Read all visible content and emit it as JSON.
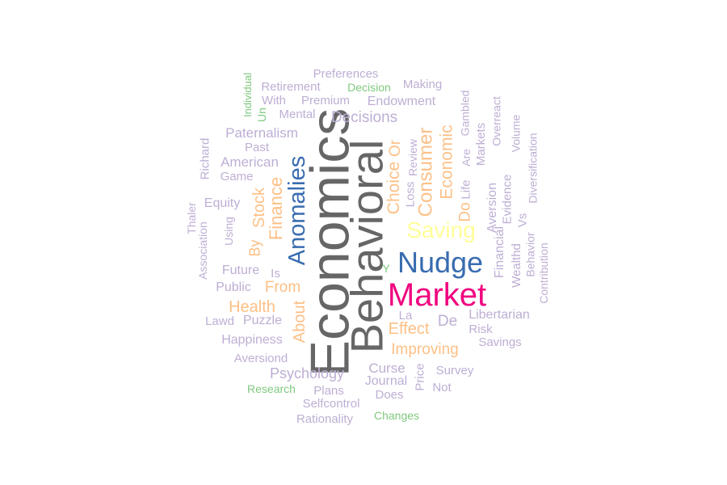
{
  "colors": {
    "gray": "#666666",
    "purple": "#BEAED4",
    "orange": "#FDC086",
    "green": "#7FC97F",
    "blue": "#386CB0",
    "yellow": "#FFFF99",
    "magenta": "#F0027F"
  },
  "words": [
    {
      "text": "Economics",
      "color": "gray"
    },
    {
      "text": "Behavioral",
      "color": "gray"
    },
    {
      "text": "Market",
      "color": "magenta"
    },
    {
      "text": "Nudge",
      "color": "blue"
    },
    {
      "text": "Anomalies",
      "color": "blue"
    },
    {
      "text": "Saving",
      "color": "yellow"
    },
    {
      "text": "Consumer",
      "color": "orange"
    },
    {
      "text": "Economic",
      "color": "orange"
    },
    {
      "text": "Finance",
      "color": "orange"
    },
    {
      "text": "Choice",
      "color": "orange"
    },
    {
      "text": "Or",
      "color": "orange"
    },
    {
      "text": "Do",
      "color": "orange"
    },
    {
      "text": "Stock",
      "color": "orange"
    },
    {
      "text": "By",
      "color": "orange"
    },
    {
      "text": "From",
      "color": "orange"
    },
    {
      "text": "Health",
      "color": "orange"
    },
    {
      "text": "About",
      "color": "orange"
    },
    {
      "text": "Effect",
      "color": "orange"
    },
    {
      "text": "Improving",
      "color": "orange"
    },
    {
      "text": "Preferences",
      "color": "purple"
    },
    {
      "text": "Making",
      "color": "purple"
    },
    {
      "text": "Decision",
      "color": "green"
    },
    {
      "text": "Retirement",
      "color": "purple"
    },
    {
      "text": "With",
      "color": "purple"
    },
    {
      "text": "Premium",
      "color": "purple"
    },
    {
      "text": "Endowment",
      "color": "purple"
    },
    {
      "text": "Individual",
      "color": "green"
    },
    {
      "text": "Un",
      "color": "green"
    },
    {
      "text": "Mental",
      "color": "purple"
    },
    {
      "text": "Decisions",
      "color": "purple"
    },
    {
      "text": "Paternalism",
      "color": "purple"
    },
    {
      "text": "Past",
      "color": "purple"
    },
    {
      "text": "American",
      "color": "purple"
    },
    {
      "text": "Game",
      "color": "purple"
    },
    {
      "text": "Richard",
      "color": "purple"
    },
    {
      "text": "Equity",
      "color": "purple"
    },
    {
      "text": "Using",
      "color": "purple"
    },
    {
      "text": "Thaler",
      "color": "purple"
    },
    {
      "text": "Association",
      "color": "purple"
    },
    {
      "text": "Future",
      "color": "purple"
    },
    {
      "text": "Is",
      "color": "purple"
    },
    {
      "text": "Public",
      "color": "purple"
    },
    {
      "text": "Lawd",
      "color": "purple"
    },
    {
      "text": "Puzzle",
      "color": "purple"
    },
    {
      "text": "Happiness",
      "color": "purple"
    },
    {
      "text": "Aversiond",
      "color": "purple"
    },
    {
      "text": "Psychology",
      "color": "purple"
    },
    {
      "text": "Research",
      "color": "green"
    },
    {
      "text": "Plans",
      "color": "purple"
    },
    {
      "text": "Selfcontrol",
      "color": "purple"
    },
    {
      "text": "Rationality",
      "color": "purple"
    },
    {
      "text": "Changes",
      "color": "green"
    },
    {
      "text": "Curse",
      "color": "purple"
    },
    {
      "text": "Journal",
      "color": "purple"
    },
    {
      "text": "Does",
      "color": "purple"
    },
    {
      "text": "Price",
      "color": "purple"
    },
    {
      "text": "Survey",
      "color": "purple"
    },
    {
      "text": "Not",
      "color": "purple"
    },
    {
      "text": "La",
      "color": "purple"
    },
    {
      "text": "De",
      "color": "purple"
    },
    {
      "text": "Libertarian",
      "color": "purple"
    },
    {
      "text": "Risk",
      "color": "purple"
    },
    {
      "text": "Savings",
      "color": "purple"
    },
    {
      "text": "Review",
      "color": "purple"
    },
    {
      "text": "Loss",
      "color": "purple"
    },
    {
      "text": "Life",
      "color": "purple"
    },
    {
      "text": "Are",
      "color": "purple"
    },
    {
      "text": "Gambled",
      "color": "purple"
    },
    {
      "text": "Markets",
      "color": "purple"
    },
    {
      "text": "Overreact",
      "color": "purple"
    },
    {
      "text": "Aversion",
      "color": "purple"
    },
    {
      "text": "Financial",
      "color": "purple"
    },
    {
      "text": "Evidence",
      "color": "purple"
    },
    {
      "text": "Volume",
      "color": "purple"
    },
    {
      "text": "Wealthd",
      "color": "purple"
    },
    {
      "text": "Vs",
      "color": "purple"
    },
    {
      "text": "Behavior",
      "color": "purple"
    },
    {
      "text": "Diversification",
      "color": "purple"
    },
    {
      "text": "Contribution",
      "color": "purple"
    },
    {
      "text": "Y",
      "color": "green"
    }
  ]
}
